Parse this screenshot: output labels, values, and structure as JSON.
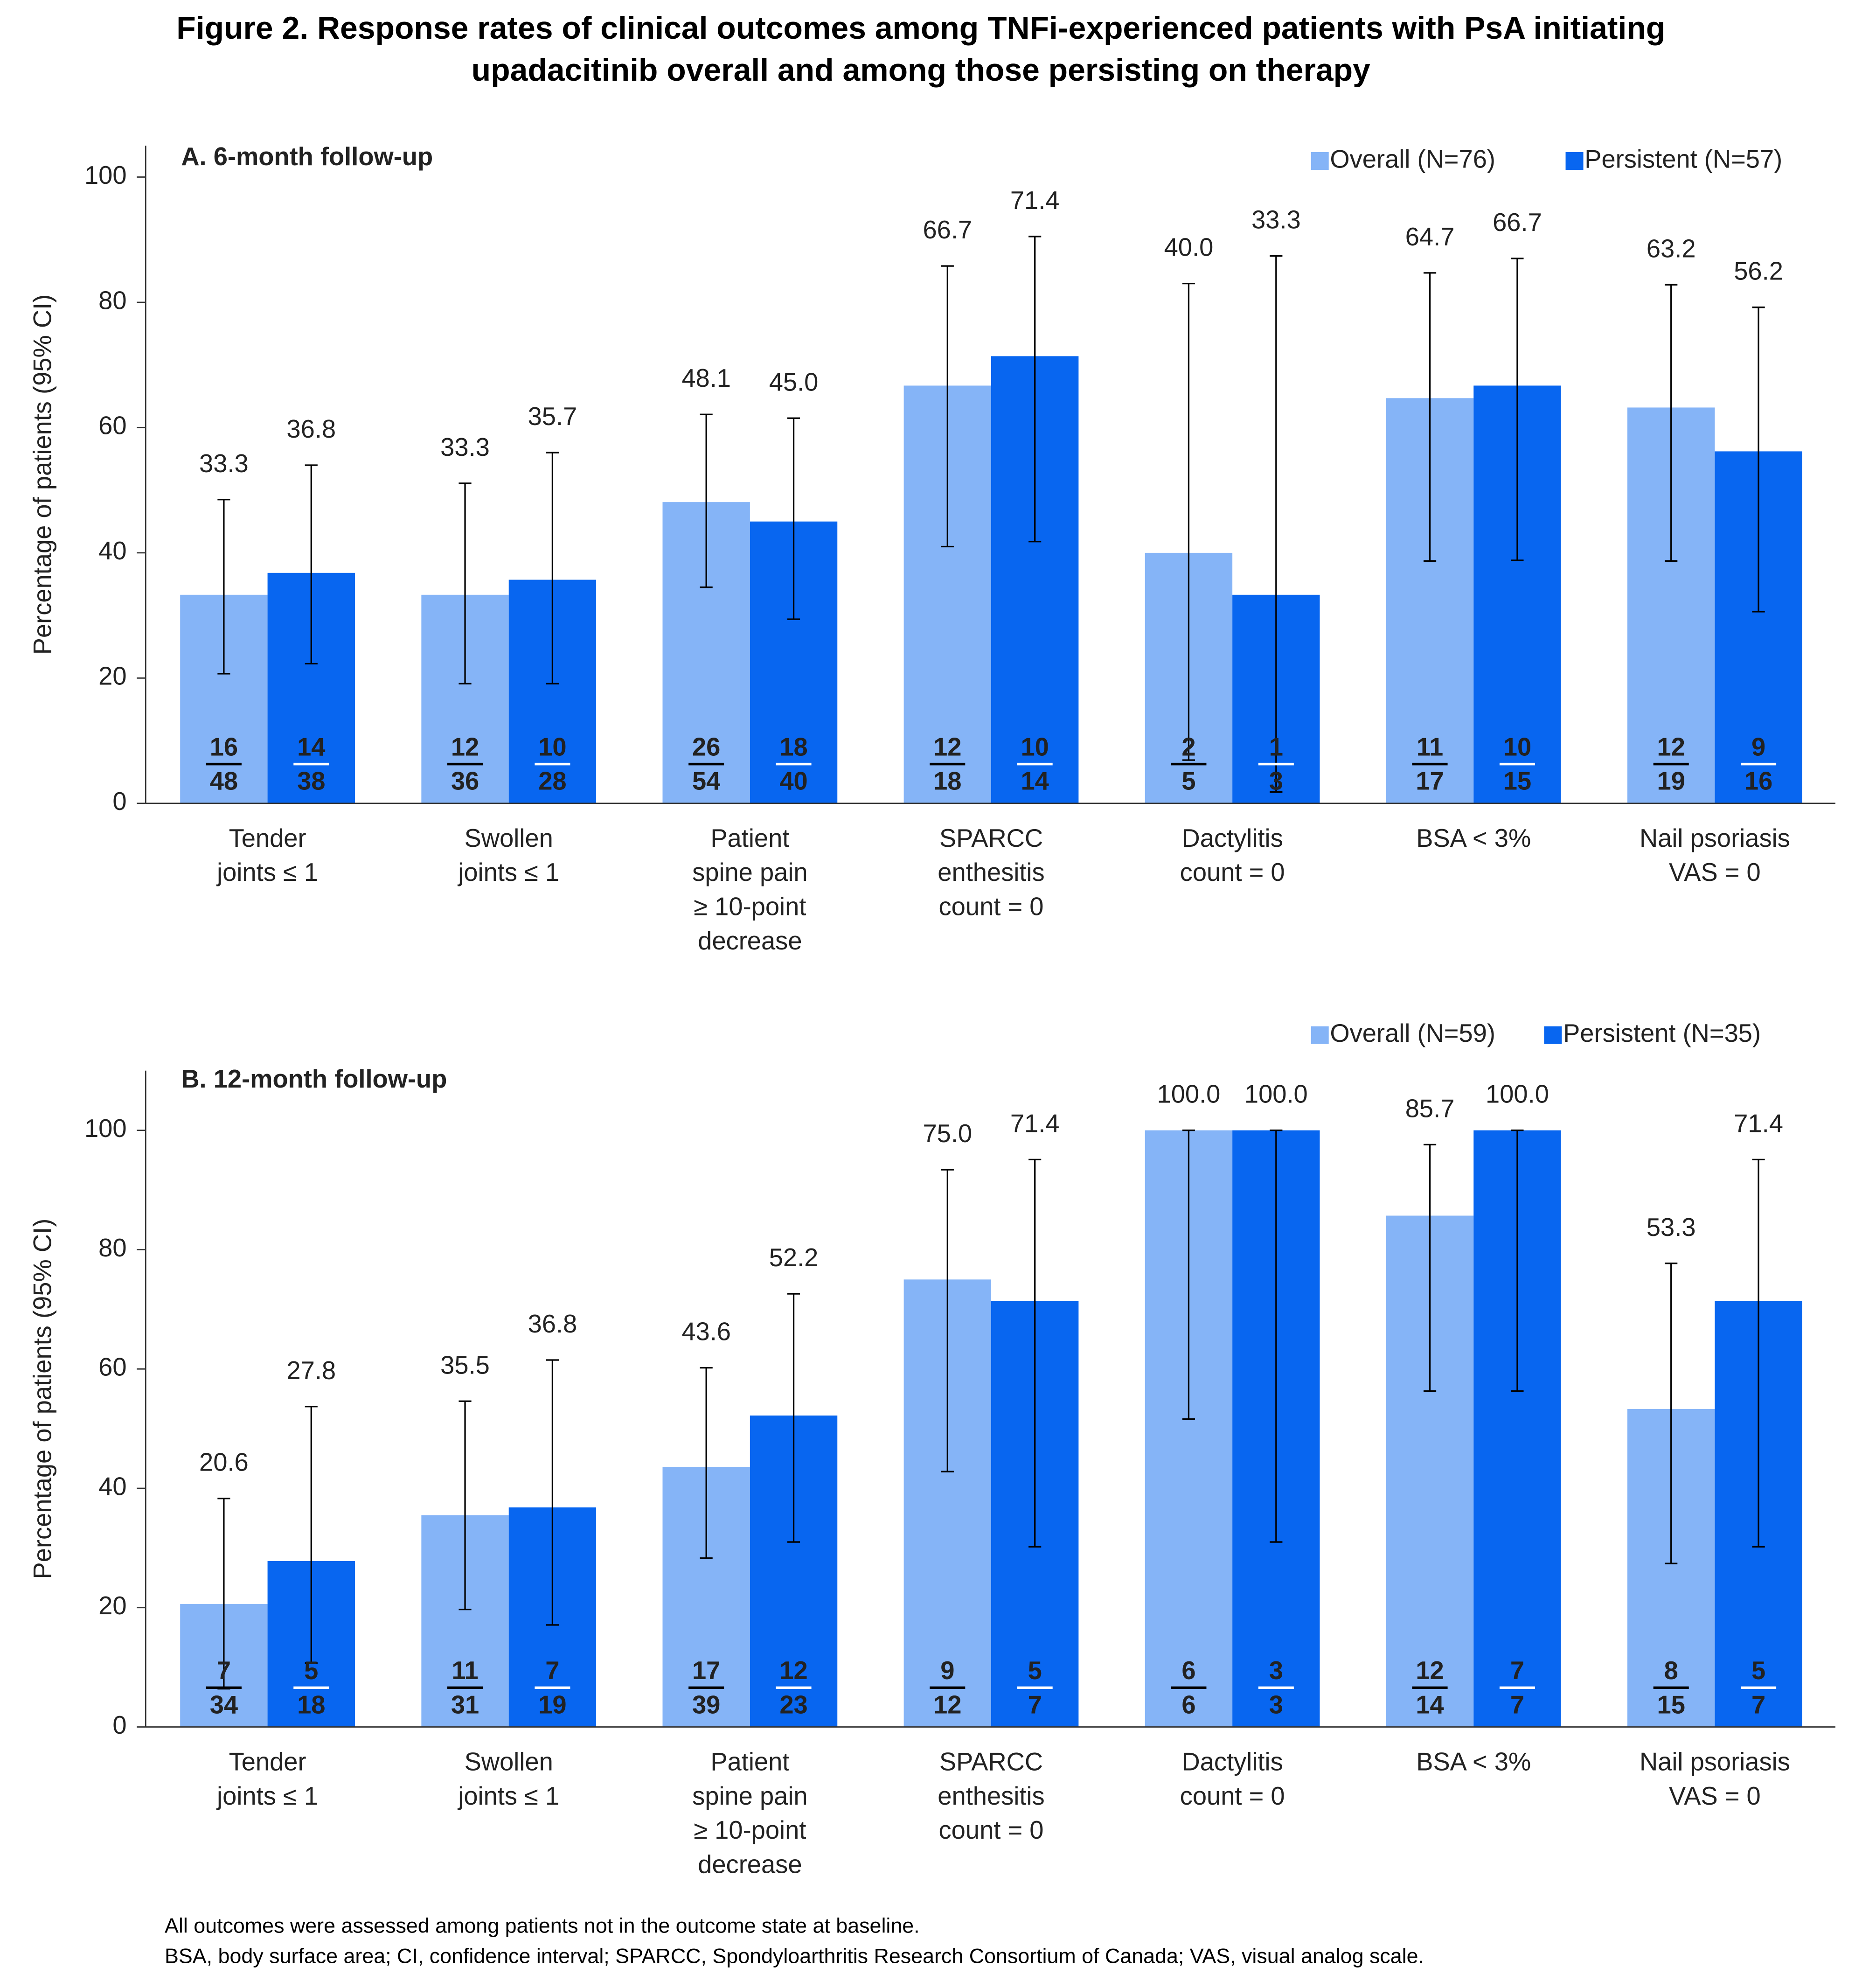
{
  "title": [
    "Figure 2. Response rates of clinical outcomes among TNFi-experienced patients with PsA initiating",
    "upadacitinib overall and among those persisting on therapy"
  ],
  "footnotes": [
    "All outcomes were assessed among patients not in the outcome state at baseline.",
    "BSA, body surface area; CI, confidence interval; SPARCC, Spondyloarthritis Research Consortium of Canada; VAS, visual analog scale."
  ],
  "chart_data": [
    {
      "type": "bar",
      "title": "A. 6-month follow-up",
      "y_label": "Percentage of patients  (95% CI)",
      "categories": [
        [
          "Tender",
          "joints ≤ 1"
        ],
        [
          "Swollen",
          "joints ≤ 1"
        ],
        [
          "Patient",
          "spine pain",
          "≥ 10-point",
          "decrease"
        ],
        [
          "SPARCC",
          "enthesitis",
          "count = 0"
        ],
        [
          "Dactylitis",
          "count = 0"
        ],
        [
          "BSA < 3%"
        ],
        [
          "Nail psoriasis",
          "VAS = 0"
        ]
      ],
      "ylim": [
        0,
        105
      ],
      "yticks": [
        0,
        20,
        40,
        60,
        80,
        100
      ],
      "series": [
        {
          "name": "Overall (N=76)",
          "color": "#85b4f7",
          "text_color": "#000000",
          "values": [
            33.3,
            33.3,
            48.1,
            66.7,
            40.0,
            64.7,
            63.2
          ],
          "value_labels": [
            "33.3",
            "33.3",
            "48.1",
            "66.7",
            "40.0",
            "64.7",
            "63.2"
          ],
          "ci": [
            [
              20.7,
              48.5
            ],
            [
              19.1,
              51.1
            ],
            [
              34.5,
              62.1
            ],
            [
              41.0,
              85.8
            ],
            [
              6.9,
              83.0
            ],
            [
              38.7,
              84.7
            ],
            [
              38.7,
              82.8
            ]
          ],
          "numerators": [
            16,
            12,
            26,
            12,
            2,
            11,
            12
          ],
          "denominators": [
            48,
            36,
            54,
            18,
            5,
            17,
            19
          ]
        },
        {
          "name": "Persistent (N=57)",
          "color": "#0866f0",
          "text_color": "#ffffff",
          "values": [
            36.8,
            35.7,
            45.0,
            71.4,
            33.3,
            66.7,
            56.2
          ],
          "value_labels": [
            "36.8",
            "35.7",
            "45.0",
            "71.4",
            "33.3",
            "66.7",
            "56.2"
          ],
          "ci": [
            [
              22.3,
              54.0
            ],
            [
              19.1,
              56.0
            ],
            [
              29.4,
              61.5
            ],
            [
              41.8,
              90.5
            ],
            [
              1.8,
              87.4
            ],
            [
              38.8,
              87.0
            ],
            [
              30.6,
              79.2
            ]
          ],
          "numerators": [
            14,
            10,
            18,
            10,
            1,
            10,
            9
          ],
          "denominators": [
            38,
            28,
            40,
            14,
            3,
            15,
            16
          ]
        }
      ]
    },
    {
      "type": "bar",
      "title": "B. 12-month follow-up",
      "y_label": "Percentage of patients  (95% CI)",
      "categories": [
        [
          "Tender",
          "joints ≤ 1"
        ],
        [
          "Swollen",
          "joints ≤ 1"
        ],
        [
          "Patient",
          "spine pain",
          "≥ 10-point",
          "decrease"
        ],
        [
          "SPARCC",
          "enthesitis",
          "count = 0"
        ],
        [
          "Dactylitis",
          "count  = 0"
        ],
        [
          "BSA < 3%"
        ],
        [
          "Nail psoriasis",
          "VAS = 0"
        ]
      ],
      "ylim": [
        0,
        110
      ],
      "yticks": [
        0,
        20,
        40,
        60,
        80,
        100
      ],
      "series": [
        {
          "name": "Overall (N=59)",
          "color": "#85b4f7",
          "text_color": "#000000",
          "values": [
            20.6,
            35.5,
            43.6,
            75.0,
            100,
            85.7,
            53.3
          ],
          "value_labels": [
            "20.6",
            "35.5",
            "43.6",
            "75.0",
            "100.0",
            "85.7",
            "53.3"
          ],
          "ci": [
            [
              6.4,
              38.3
            ],
            [
              19.7,
              54.6
            ],
            [
              28.3,
              60.2
            ],
            [
              42.8,
              93.4
            ],
            [
              51.6,
              100
            ],
            [
              56.3,
              97.6
            ],
            [
              27.4,
              77.7
            ]
          ],
          "numerators": [
            7,
            11,
            17,
            9,
            6,
            12,
            8
          ],
          "denominators": [
            34,
            31,
            39,
            12,
            6,
            14,
            15
          ]
        },
        {
          "name": "Persistent (N=35)",
          "color": "#0866f0",
          "text_color": "#ffffff",
          "values": [
            27.8,
            36.8,
            52.2,
            71.4,
            100,
            100,
            71.4
          ],
          "value_labels": [
            "27.8",
            "36.8",
            "52.2",
            "71.4",
            "100.0",
            "100.0",
            "71.4"
          ],
          "ci": [
            [
              10.7,
              53.7
            ],
            [
              17.1,
              61.5
            ],
            [
              31.0,
              72.6
            ],
            [
              30.2,
              95.1
            ],
            [
              31.0,
              100
            ],
            [
              56.3,
              100
            ],
            [
              30.2,
              95.1
            ]
          ],
          "numerators": [
            5,
            7,
            12,
            5,
            3,
            7,
            5
          ],
          "denominators": [
            18,
            19,
            23,
            7,
            3,
            7,
            7
          ]
        }
      ]
    }
  ]
}
